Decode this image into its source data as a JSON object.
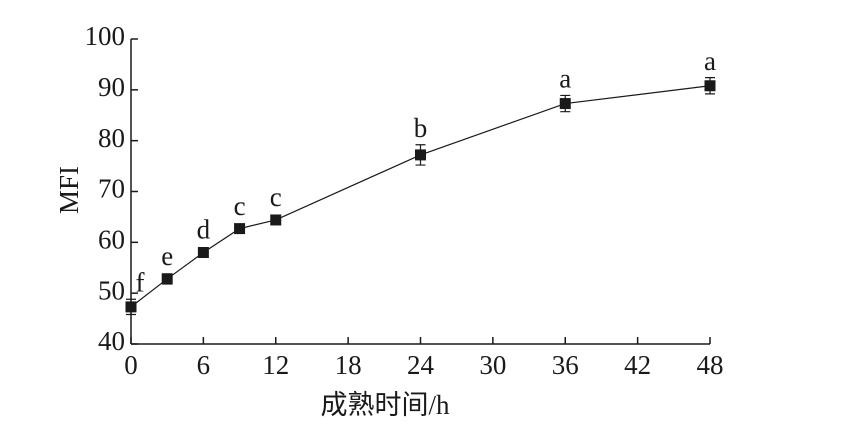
{
  "chart_data": {
    "type": "line",
    "x": [
      0,
      3,
      6,
      9,
      12,
      24,
      36,
      48
    ],
    "values": [
      47.3,
      52.8,
      58,
      62.7,
      64.4,
      77.2,
      87.3,
      90.8
    ],
    "errors": [
      1.5,
      1.0,
      0.5,
      0.6,
      0.5,
      2.0,
      1.6,
      1.6
    ],
    "point_labels": [
      "f",
      "e",
      "d",
      "c",
      "c",
      "b",
      "a",
      "a"
    ],
    "color": "#1a1a1a",
    "xlabel": "成熟时间/h",
    "ylabel": "MFI",
    "xlim": [
      0,
      48
    ],
    "xticks": [
      0,
      6,
      12,
      18,
      24,
      30,
      36,
      42,
      48
    ],
    "ylim": [
      40,
      100
    ],
    "yticks": [
      40,
      50,
      60,
      70,
      80,
      90,
      100
    ]
  }
}
